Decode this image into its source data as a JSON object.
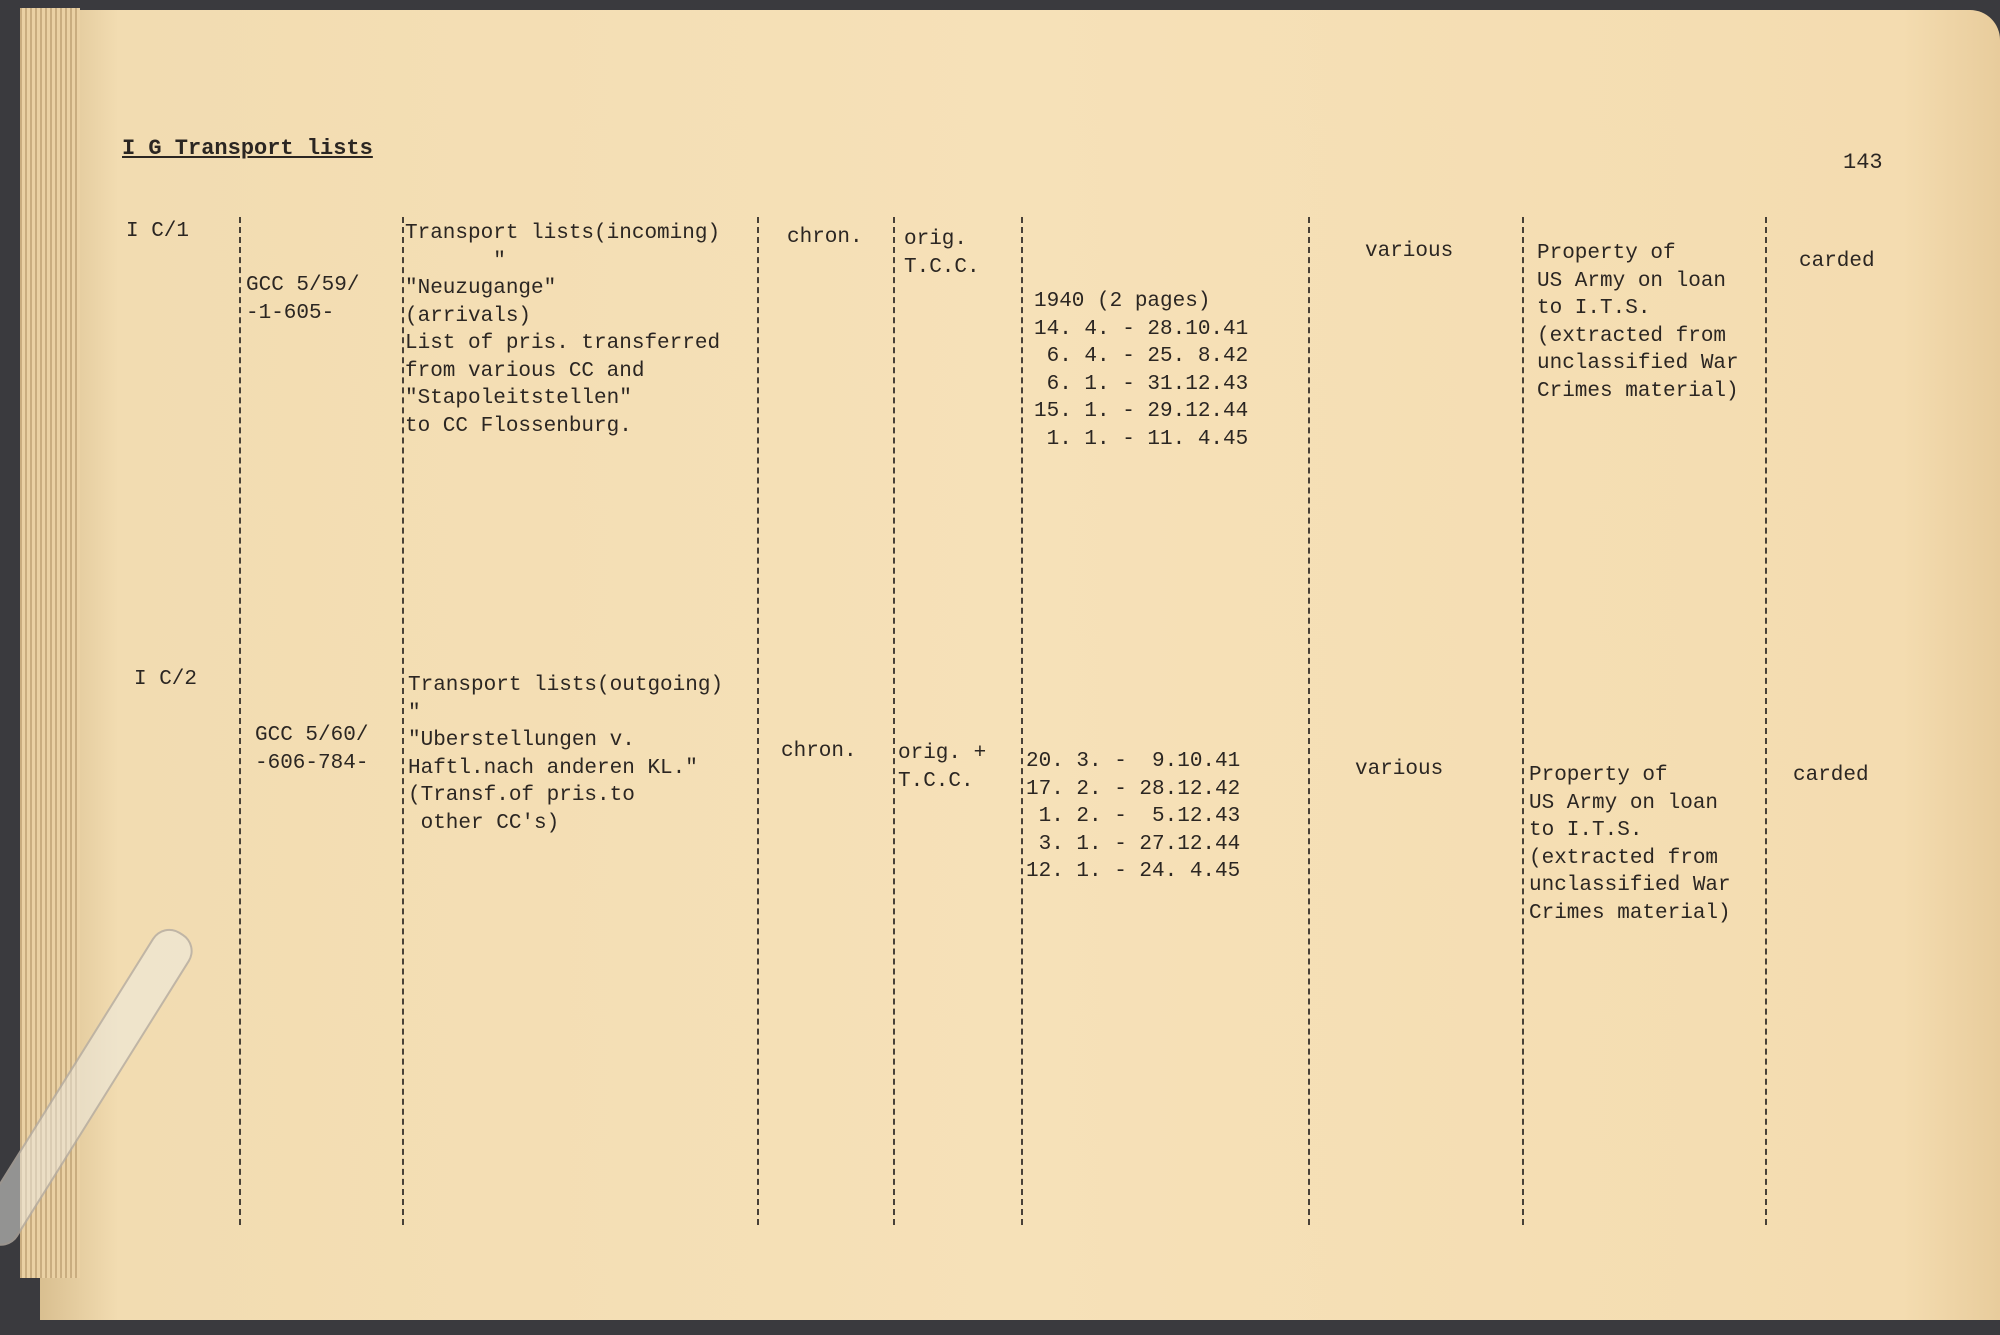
{
  "header": {
    "section_title": "I G  Transport lists",
    "page_number": "143"
  },
  "entries": [
    {
      "id": "I C/1",
      "ref": "GCC 5/59/\n-1-605-",
      "description": "Transport lists(incoming)\n       \"\n\"Neuzugange\"\n(arrivals)\nList of pris. transferred\nfrom various CC and\n\"Stapoleitstellen\"\nto CC Flossenburg.",
      "order": "chron.",
      "type": "orig.\nT.C.C.",
      "dates": "1940 (2 pages)\n14. 4. - 28.10.41\n 6. 4. - 25. 8.42\n 6. 1. - 31.12.43\n15. 1. - 29.12.44\n 1. 1. - 11. 4.45",
      "languages": "various",
      "remarks": "Property of\nUS Army on loan\nto I.T.S.\n(extracted from\nunclassified War\nCrimes material)",
      "status": "carded"
    },
    {
      "id": "I C/2",
      "ref": "GCC 5/60/\n-606-784-",
      "description": "Transport lists(outgoing)\n\"\n\"Uberstellungen v.\nHaftl.nach anderen KL.\"\n(Transf.of pris.to\n other CC's)",
      "order": "chron.",
      "type": "orig. +\nT.C.C.",
      "dates": "20. 3. -  9.10.41\n17. 2. - 28.12.42\n 1. 2. -  5.12.43\n 3. 1. - 27.12.44\n12. 1. - 24. 4.45",
      "languages": "various",
      "remarks": "Property of\nUS Army on loan\nto I.T.S.\n(extracted from\nunclassified War\nCrimes material)",
      "status": "carded"
    }
  ]
}
